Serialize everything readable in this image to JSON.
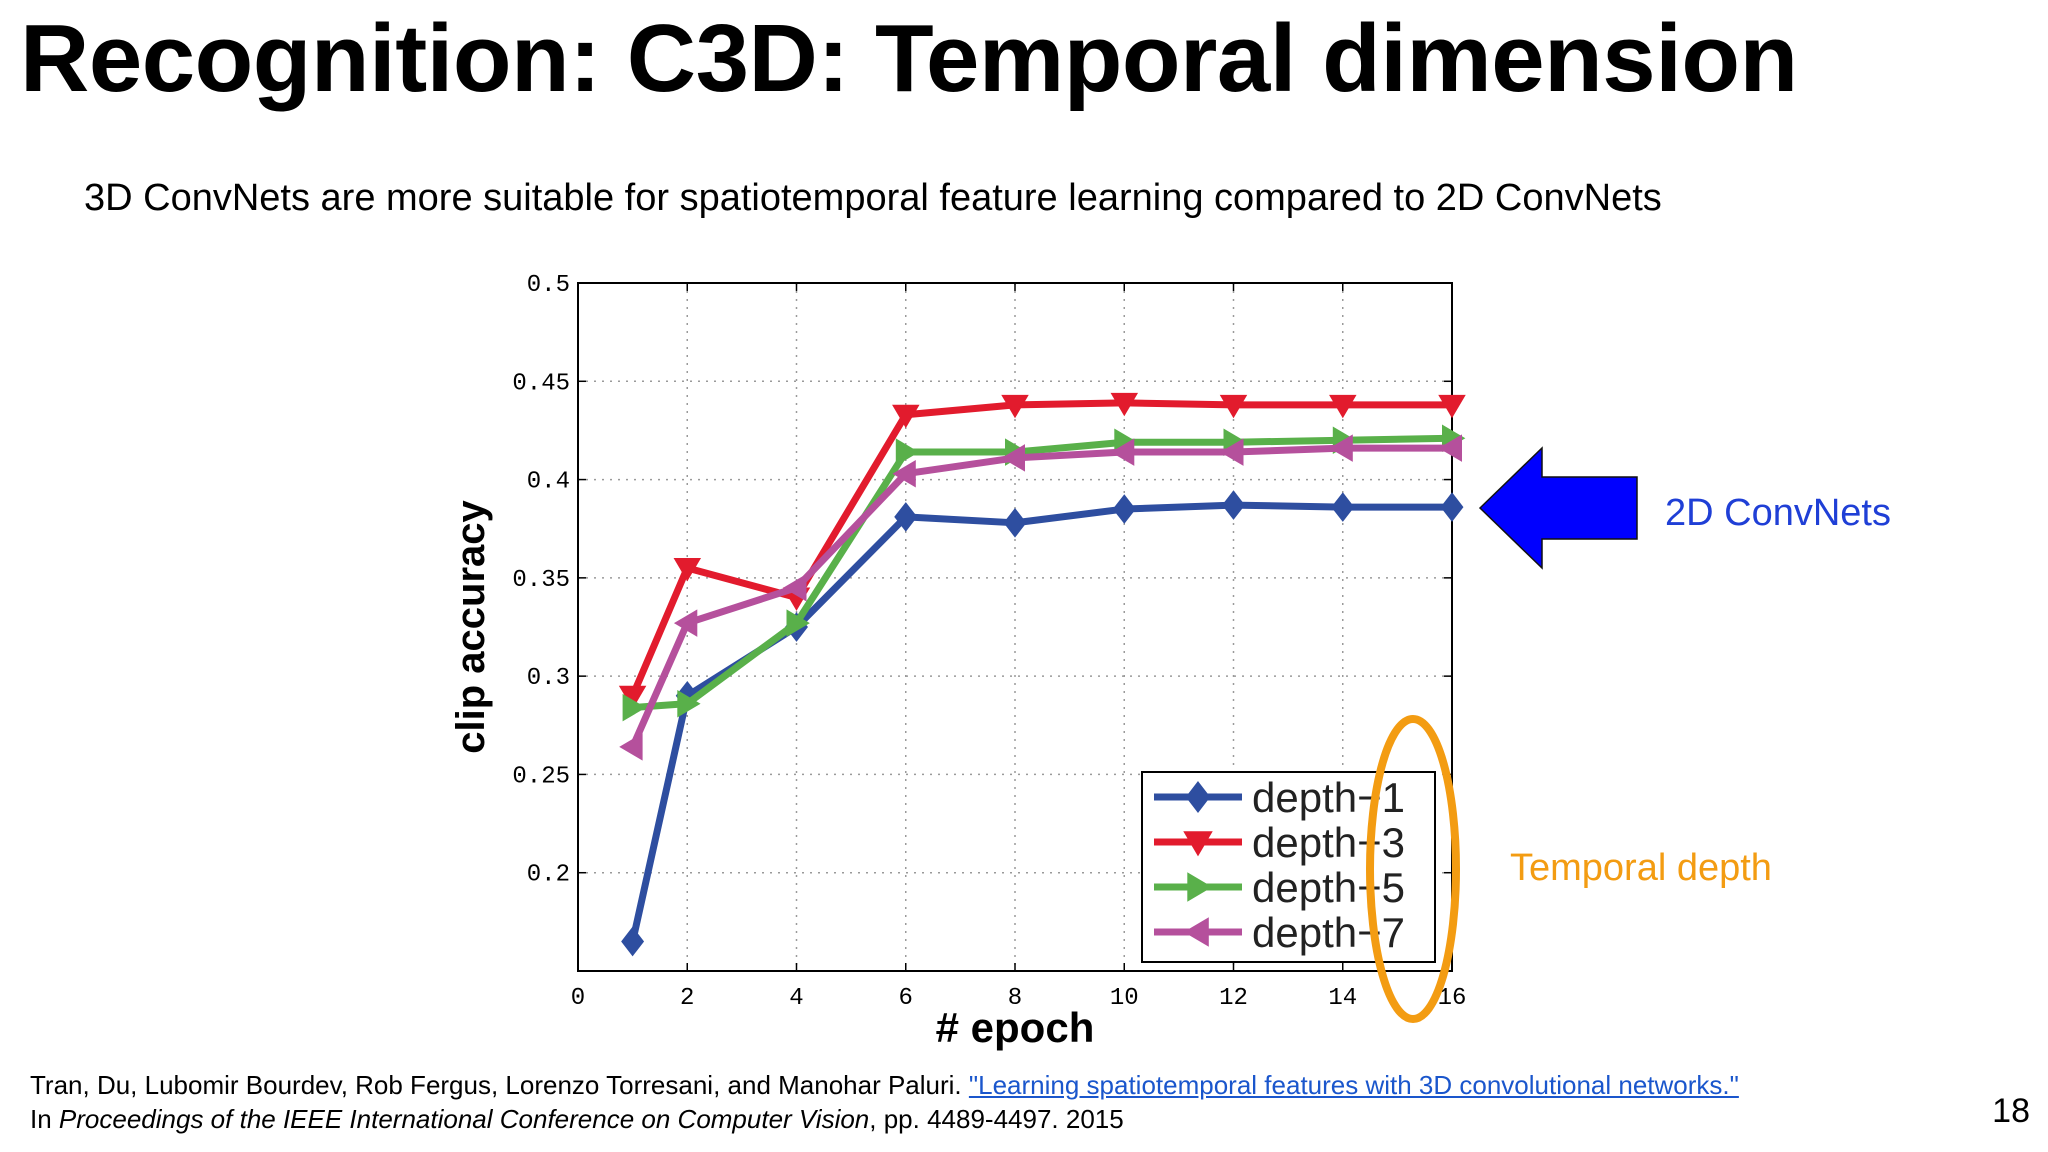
{
  "title": "Recognition: C3D: Temporal dimension",
  "subtitle": "3D ConvNets are more suitable for spatiotemporal feature learning compared to 2D ConvNets",
  "annotations": {
    "arrow_label": "2D ConvNets",
    "arrow_color": "#0000ff",
    "arrow_label_color": "#1f3fd6",
    "ellipse_label": "Temporal depth",
    "ellipse_color": "#f39c12"
  },
  "citation": {
    "prefix": "Tran, Du, Lubomir Bourdev, Rob Fergus, Lorenzo Torresani, and Manohar Paluri. ",
    "link": "\"Learning spatiotemporal features with 3D convolutional networks.\"",
    "line2_prefix": "In ",
    "venue": "Proceedings of the IEEE International Conference on Computer Vision",
    "line2_suffix": ", pp. 4489-4497. 2015"
  },
  "page_number": "18",
  "chart_data": {
    "type": "line",
    "xlabel": "# epoch",
    "ylabel": "clip accuracy",
    "xlim": [
      0,
      16
    ],
    "ylim": [
      0.15,
      0.5
    ],
    "xticks": [
      "0",
      "2",
      "4",
      "6",
      "8",
      "10",
      "12",
      "14",
      "16"
    ],
    "yticks": [
      "0.2",
      "0.25",
      "0.3",
      "0.35",
      "0.4",
      "0.45",
      "0.5"
    ],
    "grid": true,
    "legend": "bottom-right",
    "x": [
      1,
      2,
      4,
      6,
      8,
      10,
      12,
      14,
      16
    ],
    "series": [
      {
        "name": "depth−1",
        "color": "#2e4ea0",
        "marker": "diamond",
        "values": [
          0.165,
          0.29,
          0.325,
          0.381,
          0.378,
          0.385,
          0.387,
          0.386,
          0.386
        ]
      },
      {
        "name": "depth−3",
        "color": "#e21b2d",
        "marker": "triangle-down",
        "values": [
          0.29,
          0.355,
          0.34,
          0.433,
          0.438,
          0.439,
          0.438,
          0.438,
          0.438
        ]
      },
      {
        "name": "depth−5",
        "color": "#59b04a",
        "marker": "triangle-right",
        "values": [
          0.284,
          0.286,
          0.327,
          0.414,
          0.414,
          0.419,
          0.419,
          0.42,
          0.421
        ]
      },
      {
        "name": "depth−7",
        "color": "#b5509c",
        "marker": "triangle-left",
        "values": [
          0.264,
          0.327,
          0.345,
          0.403,
          0.411,
          0.414,
          0.414,
          0.416,
          0.416
        ]
      }
    ]
  }
}
